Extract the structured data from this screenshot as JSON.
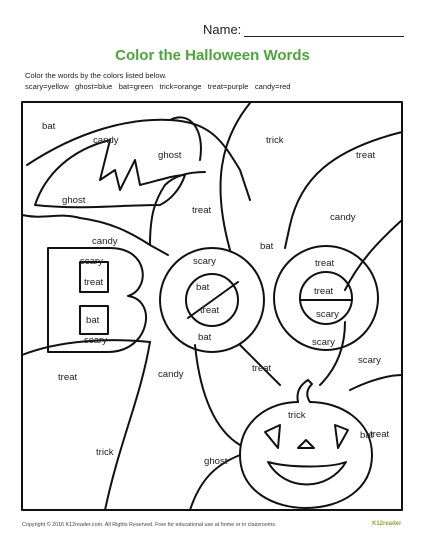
{
  "header": {
    "name_label": "Name:"
  },
  "title": "Color the Halloween Words",
  "instructions": {
    "line1": "Color the words by the colors listed below.",
    "line2": "scary=yellow   ghost=blue   bat=green   trick=orange   treat=purple   candy=red"
  },
  "words": [
    "bat",
    "candy",
    "ghost",
    "trick",
    "treat",
    "ghost",
    "treat",
    "candy",
    "candy",
    "bat",
    "scary",
    "treat",
    "scary",
    "bat",
    "treat",
    "scary",
    "treat",
    "bat",
    "treat",
    "scary",
    "bat",
    "scary",
    "scary",
    "treat",
    "candy",
    "treat",
    "bat",
    "trick",
    "treat",
    "trick",
    "ghost"
  ],
  "footer": "Copyright © 2016  K12reader.com. All Rights Reserved. Free for educational use at home or in classrooms.",
  "logo": "K12reader"
}
